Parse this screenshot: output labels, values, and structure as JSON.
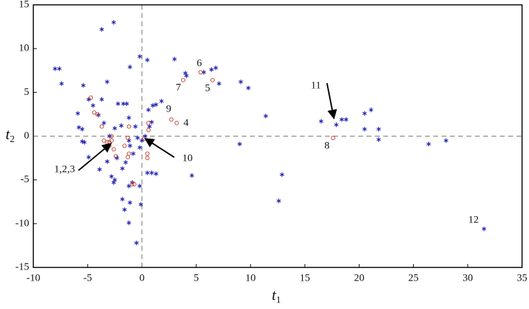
{
  "chart_data": {
    "type": "scatter",
    "xlabel": {
      "base": "t",
      "sub": "1"
    },
    "ylabel": {
      "base": "t",
      "sub": "2"
    },
    "xlim": [
      -10,
      35
    ],
    "ylim": [
      -15,
      15
    ],
    "xticks": [
      -10,
      -5,
      0,
      5,
      10,
      15,
      20,
      25,
      30,
      35
    ],
    "yticks": [
      -15,
      -10,
      -5,
      0,
      5,
      10,
      15
    ],
    "zero_lines": true,
    "series": [
      {
        "marker": "asterisk",
        "color": "#1f1fb4",
        "x": [
          -3.7,
          -2.6,
          -8.0,
          -7.6,
          -7.4,
          -5.4,
          -3.2,
          -1.1,
          -0.2,
          0.5,
          3.0,
          4.0,
          4.1,
          5.7,
          6.4,
          6.8,
          7.1,
          9.1,
          9.8,
          11.4,
          16.5,
          17.9,
          18.4,
          18.8,
          20.5,
          21.1,
          21.8,
          20.5,
          21.8,
          26.4,
          28.0,
          31.5,
          9.0,
          12.9,
          12.6,
          4.6,
          1.3,
          0.5,
          0.9,
          -0.2,
          -0.1,
          -1.1,
          -1.2,
          -0.5,
          -1.6,
          -1.8,
          -2.6,
          -2.8,
          -2.5,
          -1.2,
          -0.9,
          -1.8,
          -1.5,
          -0.8,
          -0.2,
          0.0,
          -0.4,
          0.3,
          -4.9,
          -5.5,
          -5.3,
          -5.8,
          -5.5,
          -5.9,
          -4.9,
          -4.5,
          -3.7,
          -4.0,
          -3.5,
          -3.0,
          -2.5,
          -1.9,
          -2.2,
          -1.7,
          -1.4,
          -1.2,
          0.6,
          1.0,
          1.3,
          1.8,
          0.9,
          0.7,
          -0.6,
          -1.1,
          -2.3,
          -3.2,
          -3.9,
          -1.2
        ],
        "values": [
          12.2,
          13.0,
          7.7,
          7.7,
          6.0,
          5.8,
          6.2,
          7.9,
          9.1,
          8.7,
          8.8,
          7.2,
          6.9,
          7.3,
          7.6,
          7.8,
          6.0,
          6.2,
          5.5,
          2.3,
          1.7,
          1.3,
          1.9,
          1.9,
          2.6,
          3.0,
          0.8,
          0.8,
          -0.4,
          -0.9,
          -0.5,
          -10.6,
          -0.9,
          -4.4,
          -7.4,
          -4.5,
          -4.3,
          -4.2,
          -4.2,
          -5.7,
          -7.8,
          -7.6,
          -9.9,
          -12.2,
          -8.4,
          -7.2,
          -5.3,
          -4.6,
          -5.0,
          -5.7,
          -5.3,
          -3.7,
          -3.0,
          -2.0,
          -1.3,
          -0.5,
          -0.2,
          0.0,
          -2.4,
          -0.6,
          -0.7,
          1.0,
          0.8,
          2.6,
          4.2,
          3.5,
          4.2,
          2.4,
          1.5,
          0.0,
          0.9,
          1.2,
          3.7,
          3.7,
          3.7,
          2.1,
          3.0,
          3.5,
          3.6,
          4.0,
          1.6,
          1.1,
          1.1,
          -1.1,
          -2.5,
          -2.9,
          -3.8,
          -0.5
        ]
      },
      {
        "marker": "circle",
        "color": "#c0392b",
        "x": [
          5.4,
          3.8,
          6.5,
          2.7,
          3.2,
          17.6,
          0.2,
          -3.0,
          -2.8,
          -4.7,
          -4.4,
          -4.1,
          -3.7,
          -3.5,
          -3.0,
          -2.6,
          -2.4,
          -1.6,
          -1.2,
          -1.3,
          -1.2,
          -1.3,
          0.6,
          0.6,
          0.5,
          0.5,
          -0.9,
          -0.7,
          -2.8,
          -3.2
        ],
        "values": [
          7.3,
          6.4,
          6.4,
          1.9,
          1.5,
          -0.2,
          -0.3,
          -0.7,
          -0.5,
          4.4,
          2.7,
          2.5,
          1.1,
          -0.5,
          -1.1,
          -1.5,
          -2.3,
          -1.1,
          1.1,
          -0.2,
          -2.0,
          -2.4,
          1.5,
          0.7,
          -2.0,
          -2.5,
          -5.5,
          -5.5,
          0.0,
          -0.7
        ]
      }
    ],
    "annotations": [
      "1,2,3",
      "10",
      "11",
      "12",
      "6",
      "7",
      "5",
      "9",
      "4",
      "8"
    ]
  }
}
